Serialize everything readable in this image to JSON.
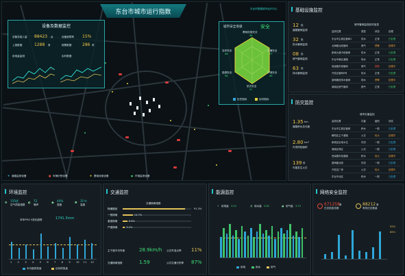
{
  "title": "东台市城市运行指数",
  "subtitle": "东台市数据城市运行中心",
  "map": {
    "monitor": {
      "title": "设备及数据监控",
      "stats": [
        {
          "label": "设备总接入量",
          "value": "88423",
          "unit": "台"
        },
        {
          "label": "设备故障率",
          "value": "15%",
          "unit": ""
        },
        {
          "label": "上报数据",
          "value": "1288",
          "unit": "条"
        },
        {
          "label": "报警数据",
          "value": "286",
          "unit": "条"
        }
      ],
      "chart1": "用电量监测",
      "chart2": "实时数据"
    },
    "safety": {
      "title": "城市安全等级",
      "level": "安全",
      "axes": [
        {
          "name": "基础设施安全",
          "score": "96"
        },
        {
          "name": "交通安全",
          "score": "97"
        },
        {
          "name": "环境安全",
          "score": "96"
        },
        {
          "name": "防灾安全",
          "score": "97"
        },
        {
          "name": "能源安全",
          "score": "96"
        },
        {
          "name": "治安安全",
          "score": "96"
        }
      ],
      "legend": [
        "历史指标",
        "实时指标"
      ]
    },
    "legend": [
      "道路监测设备",
      "车辆识别设备",
      "基础设施设备",
      "环境监测设备"
    ]
  },
  "infra": {
    "title": "基础设施监控",
    "stats": [
      {
        "value": "12",
        "unit": "处",
        "label": "道路管网监测"
      },
      {
        "value": "32",
        "unit": "处",
        "label": "供水管网监测"
      },
      {
        "value": "08",
        "unit": "处",
        "label": "燃气管网监测"
      },
      {
        "value": "63",
        "unit": "处",
        "label": "排水管网监测"
      }
    ],
    "table_title": "城市管网监测实时信息",
    "headers": [
      "监测位置",
      "类型",
      "状态",
      "处理"
    ],
    "rows": [
      [
        "东台市主城区管网1",
        "供水",
        "正常",
        "已处理"
      ],
      [
        "北海路北段管网",
        "燃气",
        "预警",
        "处理中"
      ],
      [
        "新城大道中段管网",
        "供水",
        "正常",
        "已处理"
      ],
      [
        "东台市南区道路",
        "排水",
        "正常",
        "已处理"
      ],
      [
        "西溪路东段管网",
        "燃气",
        "报警",
        "处理中"
      ],
      [
        "开发区管网6号",
        "供水",
        "正常",
        "已处理"
      ],
      [
        "望海路段排水管网",
        "排水",
        "预警",
        "处理中"
      ],
      [
        "城南区燃气管网",
        "燃气",
        "正常",
        "已处理"
      ]
    ]
  },
  "disaster": {
    "title": "防灾监控",
    "stats": [
      {
        "value": "1.35",
        "unit": "km",
        "label": "道路积水总长度"
      },
      {
        "value": "2.80",
        "unit": "km²",
        "label": "内涝风险面积"
      },
      {
        "value": "139",
        "unit": "处",
        "label": "可能发生火灾"
      }
    ],
    "table_title": "城市灾害监控",
    "headers": [
      "监测位置",
      "灾害",
      "级别",
      "状态"
    ],
    "rows": [
      [
        "东台市主城区管网",
        "积水",
        "一般",
        "已处理"
      ],
      [
        "朝阳区主干道路",
        "火灾",
        "较大",
        "处理中"
      ],
      [
        "新城区区域水位",
        "内涝",
        "一般",
        "已处理"
      ],
      [
        "城南区林区",
        "火灾",
        "一般",
        "已处理"
      ],
      [
        "西溪路东段道路",
        "积水",
        "较大",
        "处理中"
      ],
      [
        "望海路北段",
        "内涝",
        "一般",
        "已处理"
      ],
      [
        "开发区厂房",
        "火灾",
        "较大",
        "处理中"
      ],
      [
        "东台市北区",
        "积水",
        "一般",
        "已处理"
      ]
    ]
  },
  "env": {
    "title": "环境监控",
    "stats": [
      {
        "value": "155优",
        "label": "空气质量指数"
      },
      {
        "value": "72",
        "label": "噪声"
      },
      {
        "value": "44%",
        "label": "湿度"
      },
      {
        "value": "31℃",
        "label": "温度"
      }
    ],
    "chart_title": "本年PM2.5变化趋势",
    "chart_value": "1741.3mm",
    "months": [
      "1",
      "2",
      "3",
      "4",
      "5",
      "6",
      "7",
      "8",
      "9",
      "10",
      "11",
      "12"
    ],
    "pm": [
      0.55,
      0.35,
      0.45,
      0.3,
      0.8,
      0.4,
      0.5,
      0.35,
      0.7,
      0.45,
      0.6,
      0.5
    ],
    "legend": [
      "本月度排放量",
      "目标排放量"
    ]
  },
  "traffic": {
    "title": "交通监控",
    "chart_title": "交通拥堵指数",
    "items": [
      {
        "label": "畅通路段",
        "pct": "91.3%",
        "v": 0.913
      },
      {
        "label": "一般拥堵",
        "pct": "14.7%",
        "v": 0.147
      },
      {
        "label": "重度拥堵",
        "pct": "6.8%",
        "v": 0.068
      },
      {
        "label": "严重拥堵",
        "pct": "3.2%",
        "v": 0.032
      }
    ],
    "stats": [
      {
        "label": "主干道平均车速",
        "value": "28.9km/h"
      },
      {
        "label": "公交车准点率",
        "value": "11%"
      },
      {
        "label": "交通拥堵指数",
        "value": "1.59"
      },
      {
        "label": "公共交通分担率",
        "value": "87%"
      }
    ]
  },
  "energy": {
    "title": "能源监控",
    "stats": [
      {
        "label": "用电量",
        "value": "3.22"
      },
      {
        "label": "用水量",
        "value": "2.81"
      },
      {
        "label": "用气量",
        "value": "3.72"
      }
    ],
    "legend": [
      "用电",
      "用水",
      "用气"
    ],
    "bars": [
      0.55,
      0.8,
      0.65,
      0.9,
      0.6,
      0.75,
      0.5,
      0.85,
      0.7,
      0.6,
      0.8,
      0.55,
      0.7,
      0.9,
      0.65,
      0.75,
      0.6,
      0.85,
      0.5,
      0.7,
      0.8,
      0.65,
      0.75,
      0.9,
      0.6,
      0.7,
      0.55,
      0.8
    ]
  },
  "net": {
    "title": "网络安全监控",
    "stats": [
      {
        "value": "671258",
        "unit": "条",
        "label": "日志信息总数"
      },
      {
        "value": "88212",
        "unit": "条",
        "label": "有效日志数量"
      }
    ],
    "bars": [
      0.15,
      0.2,
      0.7,
      0.1,
      0.85,
      0.25,
      0.2,
      0.35,
      0.8
    ],
    "side": [
      "55%",
      "84%"
    ]
  }
}
